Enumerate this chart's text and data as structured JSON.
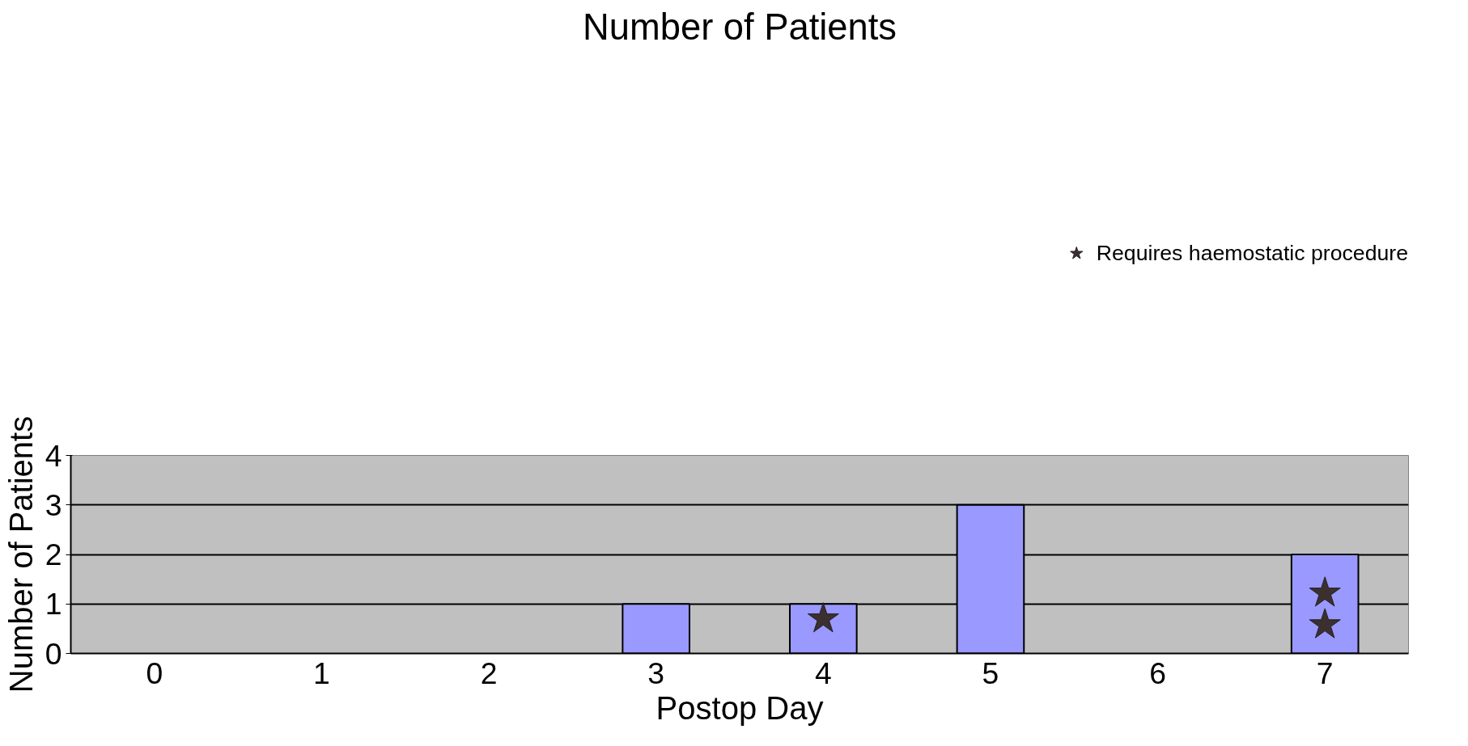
{
  "chart_data": {
    "type": "bar",
    "title": "Number of Patients",
    "xlabel": "Postop Day",
    "ylabel": "Number of Patients",
    "categories": [
      "0",
      "1",
      "2",
      "3",
      "4",
      "5",
      "6",
      "7"
    ],
    "ylim": [
      0,
      4
    ],
    "yticks": [
      0,
      1,
      2,
      3,
      4
    ],
    "grid": "y",
    "legend": "top right",
    "series": [
      {
        "color": "#9999ff",
        "values": [
          0,
          0,
          0,
          1,
          1,
          3,
          0,
          2
        ]
      },
      {
        "type": "scatter",
        "name": "Requires haemostatic procedure",
        "color": "#3b2f2f",
        "marker": "star",
        "x": [
          "4",
          "7",
          "7"
        ],
        "values": [
          0.7,
          0.58,
          1.22
        ]
      }
    ]
  }
}
